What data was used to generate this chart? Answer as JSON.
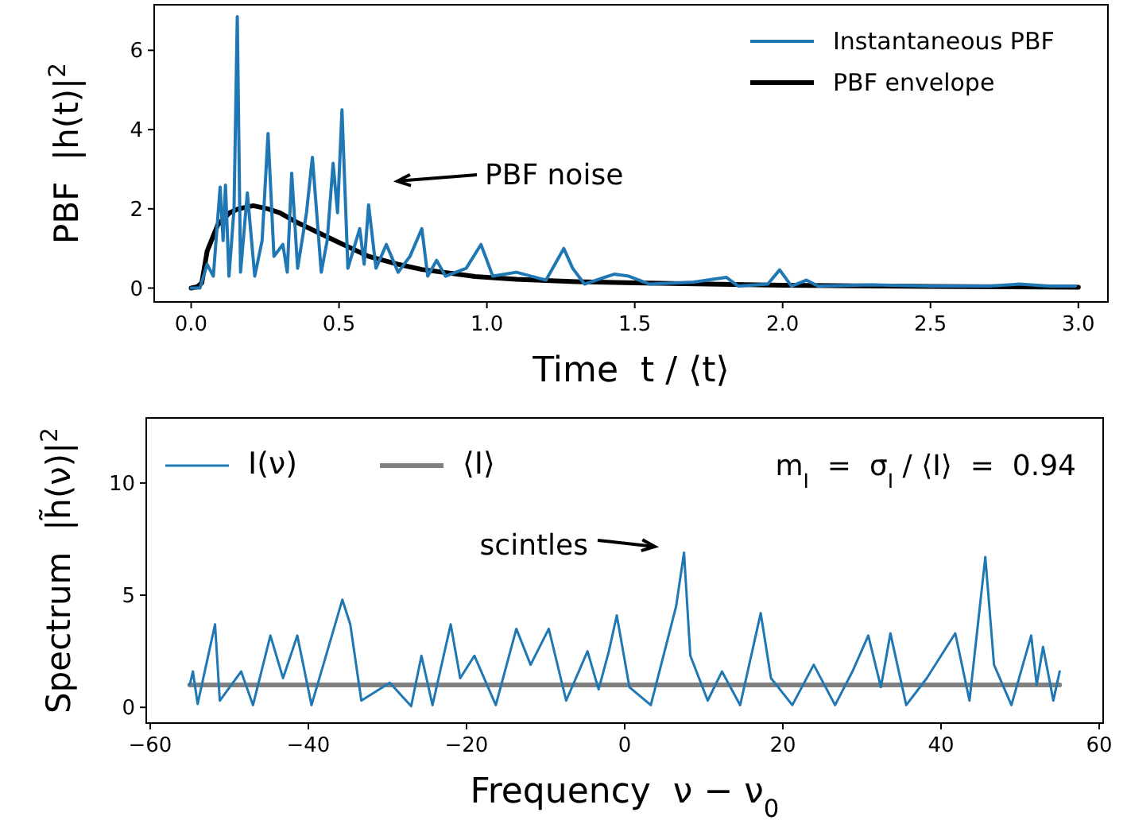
{
  "chart_data": [
    {
      "type": "line",
      "xlabel": "Time  t / ⟨t⟩",
      "ylabel": "PBF  |h(t)|$^{2}$",
      "xlim": [
        -0.125,
        3.1
      ],
      "ylim": [
        -0.35,
        7.15
      ],
      "xticks": [
        {
          "value": 0,
          "label": "0.0"
        },
        0.5,
        {
          "value": 1,
          "label": "1.0"
        },
        1.5,
        {
          "value": 2,
          "label": "2.0"
        },
        2.5,
        {
          "value": 3,
          "label": "3.0"
        }
      ],
      "yticks": [
        0,
        2,
        4,
        6
      ],
      "legend": "top right",
      "grid": false,
      "annotations": [
        "PBF noise"
      ],
      "series": [
        {
          "name": "Instantaneous PBF",
          "color": "#1f77b4",
          "x": [
            0,
            0.03,
            0.054,
            0.075,
            0.098,
            0.108,
            0.116,
            0.128,
            0.145,
            0.156,
            0.167,
            0.19,
            0.215,
            0.24,
            0.26,
            0.28,
            0.31,
            0.325,
            0.34,
            0.36,
            0.39,
            0.41,
            0.44,
            0.46,
            0.48,
            0.495,
            0.51,
            0.53,
            0.57,
            0.585,
            0.6,
            0.625,
            0.66,
            0.7,
            0.74,
            0.78,
            0.8,
            0.83,
            0.86,
            0.93,
            0.98,
            1.02,
            1.1,
            1.2,
            1.26,
            1.29,
            1.33,
            1.43,
            1.48,
            1.55,
            1.7,
            1.81,
            1.85,
            1.95,
            1.99,
            2.03,
            2.08,
            2.12,
            2.3,
            2.5,
            2.7,
            2.8,
            2.9,
            2.99
          ],
          "values": [
            0,
            0,
            0.6,
            0.3,
            2.55,
            1.2,
            2.6,
            0.3,
            2.0,
            6.85,
            0.4,
            2.4,
            0.3,
            1.2,
            3.9,
            0.8,
            1.1,
            0.4,
            2.9,
            0.5,
            1.9,
            3.3,
            0.4,
            1.2,
            3.15,
            1.9,
            4.5,
            0.5,
            1.5,
            0.6,
            2.1,
            0.5,
            1.1,
            0.4,
            0.8,
            1.5,
            0.3,
            0.7,
            0.3,
            0.5,
            1.1,
            0.3,
            0.4,
            0.2,
            1.0,
            0.5,
            0.1,
            0.35,
            0.3,
            0.1,
            0.15,
            0.27,
            0.05,
            0.1,
            0.46,
            0.05,
            0.2,
            0.05,
            0.08,
            0.05,
            0.05,
            0.1,
            0.05,
            0.05
          ]
        },
        {
          "name": "PBF envelope",
          "color": "#000000",
          "x": [
            0,
            0.02,
            0.036,
            0.054,
            0.09,
            0.13,
            0.16,
            0.21,
            0.26,
            0.3,
            0.36,
            0.43,
            0.5,
            0.6,
            0.7,
            0.78,
            0.9,
            0.96,
            1.1,
            1.3,
            1.5,
            1.75,
            2.0,
            2.5,
            3.0
          ],
          "values": [
            0,
            0.03,
            0.13,
            0.93,
            1.6,
            1.9,
            2.0,
            2.08,
            2.0,
            1.9,
            1.65,
            1.4,
            1.15,
            0.8,
            0.6,
            0.47,
            0.35,
            0.29,
            0.22,
            0.16,
            0.13,
            0.1,
            0.07,
            0.04,
            0.02
          ]
        }
      ]
    },
    {
      "type": "line",
      "xlabel": "Frequency  ν − ν$_{0}$",
      "ylabel": "Spectrum  |h̃(ν)|$^{2}$",
      "xlim": [
        -60.5,
        60.5
      ],
      "ylim": [
        -0.7,
        12.9
      ],
      "xticks": [
        {
          "value": -60,
          "label": "−60"
        },
        {
          "value": -40,
          "label": "−40"
        },
        {
          "value": -20,
          "label": "−20"
        },
        0,
        20,
        40,
        60
      ],
      "yticks": [
        0,
        5,
        10
      ],
      "legend": "top left",
      "grid": false,
      "annotations": [
        "m$_{I}$  =  σ$_{I}$ / ⟨I⟩  =  0.94",
        "scintles"
      ],
      "series": [
        {
          "name": "I(ν)",
          "color": "#1f77b4",
          "x": [
            -55,
            -54.6,
            -54,
            -51.8,
            -51.2,
            -48.5,
            -47,
            -44.8,
            -43.2,
            -41.4,
            -39.6,
            -35.7,
            -34.7,
            -33.3,
            -29.7,
            -27,
            -25.7,
            -24.3,
            -22,
            -20.8,
            -19,
            -16.3,
            -13.7,
            -11.9,
            -9.6,
            -7.4,
            -4.7,
            -3.3,
            -2,
            -1,
            0.6,
            3.3,
            6.5,
            7.5,
            8.3,
            10.5,
            12.3,
            14.6,
            17.2,
            18.5,
            21.2,
            23.9,
            26.6,
            28.8,
            30.8,
            32.4,
            33.6,
            35.6,
            38.2,
            41.8,
            43.6,
            45.6,
            46.7,
            48.9,
            51.4,
            52.1,
            52.9,
            54.2,
            55
          ],
          "values": [
            1.0,
            1.6,
            0.15,
            3.7,
            0.3,
            1.6,
            0.1,
            3.2,
            1.3,
            3.2,
            0.1,
            4.8,
            3.7,
            0.3,
            1.1,
            0.05,
            2.3,
            0.1,
            3.7,
            1.3,
            2.3,
            0.1,
            3.5,
            1.9,
            3.5,
            0.3,
            2.5,
            0.8,
            2.5,
            4.1,
            0.9,
            0.1,
            4.5,
            6.9,
            2.3,
            0.3,
            1.6,
            0.1,
            4.2,
            1.3,
            0.1,
            1.9,
            0.1,
            1.6,
            3.2,
            0.9,
            3.3,
            0.1,
            1.3,
            3.3,
            0.3,
            6.7,
            1.9,
            0.1,
            3.2,
            1.0,
            2.7,
            0.3,
            1.6
          ]
        },
        {
          "name": "⟨I⟩",
          "color": "#808080",
          "x": [
            -55,
            55
          ],
          "values": [
            1,
            1
          ]
        }
      ]
    }
  ]
}
